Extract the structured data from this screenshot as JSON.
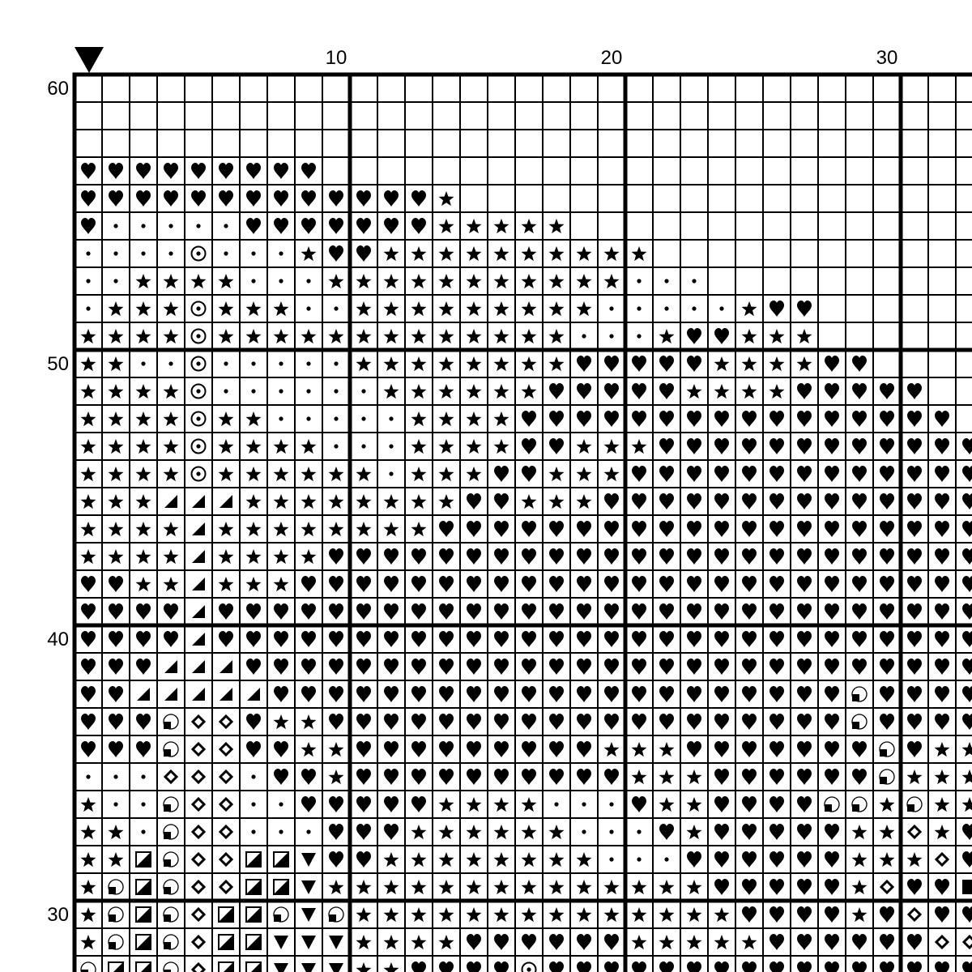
{
  "pattern": {
    "start_marker": "down-triangle-icon",
    "col_labels": [
      "10",
      "20",
      "30"
    ],
    "row_labels": [
      "60",
      "50",
      "40",
      "30"
    ],
    "first_row_number": 60,
    "symbol_key": {
      "H": "heart-icon",
      "S": "star-icon",
      ".": "dot-icon",
      "O": "circled-dot-icon",
      "T": "lower-right-triangle-icon",
      "D": "hollow-diamond-icon",
      "Q": "quarter-filled-circle-icon",
      "B": "half-filled-square-icon",
      "V": "down-triangle-icon",
      "F": "filled-square-icon"
    },
    "colors": {
      "ink": "#000000",
      "background": "#ffffff"
    },
    "rows": [
      "                                 ",
      "                                 ",
      "                                 ",
      "HHHHHHHHH                        ",
      "HHHHHHHHHHHHHS                   ",
      "H.....HHHHHHHSSSSS               ",
      "....O...SHHSSSSSSSSSS            ",
      "..SSSS...SSSSSSSSSSS...          ",
      ".SSSOSSS..SSSSSSSSS.....SHH      ",
      "SSSSOSSSSSSSSSSSSS...SHHSSS      ",
      "SS..O.....SSSSSSSSHHHHHSSSSHH    ",
      "SSSSO......SSSSSSHHHHHSSSSHHHHH  ",
      "SSSSOSS.....SSSSHHHHHHHHHHHHHHHH ",
      "SSSSOSSSS...SSSSHHSSSHHHHHHHHHHHH",
      "SSSSOSSSSSS.SSSHHSSSHHHHHHHHHHHHH",
      "SSSTTTSSSSSSSSHHSSSHHHHHHHHHHHHHH",
      "SSSSTSSSSSSSSHHHHHHHHHHHHHHHHHHHH",
      "SSSSTSSSSHHHHHHHHHHHHHHHHHHHHHHHH",
      "HHSSTSSSHHHHHHHHHHHHHHHHHHHHHHHHH",
      "HHHHTHHHHHHHHHHHHHHHHHHHHHHHHHHHH",
      "HHHHTHHHHHHHHHHHHHHHHHHHHHHHHHHHH",
      "HHHTTTHHHHHHHHHHHHHHHHHHHHHHHHHHH",
      "HHTTTTTHHHHHHHHHHHHHHHHHHHHHQHHHH",
      "HHHQDDHSSHHHHHHHHHHHHHHHHHHHQHHHH",
      "HHHQDDHHSSHHHHHHHHHSSSHHHHHHHQHSS",
      "...DDD.HHSHHHHHHHHHHSSSHHHHHHQSSS",
      "S..QDD..HHHHHSSSS...HSSHHHHQQSQSS",
      "SS.QDD...HHHSSSSSS...HSHHHHHSSDSH",
      "SSBQDDBBVHHSSSSSSSS...HHHHHHSSSDH",
      "SQBQDDBBVSSSSSSSSSSSSSSHHHHHSDHHF",
      "SQBQDBBQVQSSSSSSSSSSSSSSHHHHSHDHH",
      "SQBQDBBVVVSSSSHHHHHHSSSSSHHHHHHDD",
      "QBBQDBBVVVSSHHHHOHHHHHHHHHHHHHHHH"
    ]
  }
}
